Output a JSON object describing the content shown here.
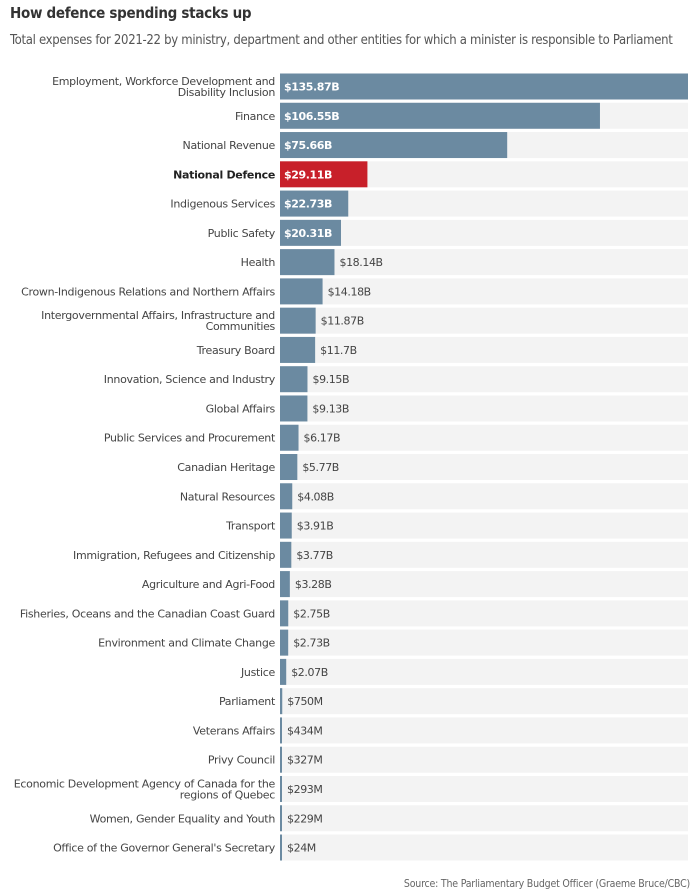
{
  "chart_data": {
    "type": "bar",
    "orientation": "horizontal",
    "title": "How defence spending stacks up",
    "subtitle": "Total expenses for 2021-22 by ministry, department and other entities for which a minister is responsible to Parliament",
    "source": "Source: The Parliamentary Budget Officer (Graeme Bruce/CBC)",
    "unit": "billions CAD",
    "colors": {
      "default": "#6b8aa1",
      "highlight": "#c8202a",
      "track": "#f3f3f3"
    },
    "highlight": "National Defence",
    "grid": false,
    "categories": [
      "Employment, Workforce Development and\nDisability Inclusion",
      "Finance",
      "National Revenue",
      "National Defence",
      "Indigenous Services",
      "Public Safety",
      "Health",
      "Crown-Indigenous Relations and Northern Affairs",
      "Intergovernmental Affairs, Infrastructure and\nCommunities",
      "Treasury Board",
      "Innovation, Science and Industry",
      "Global Affairs",
      "Public Services and Procurement",
      "Canadian Heritage",
      "Natural Resources",
      "Transport",
      "Immigration, Refugees and Citizenship",
      "Agriculture and Agri-Food",
      "Fisheries, Oceans and the Canadian Coast Guard",
      "Environment and Climate Change",
      "Justice",
      "Parliament",
      "Veterans Affairs",
      "Privy Council",
      "Economic Development Agency of Canada for the\nregions of Quebec",
      "Women, Gender Equality and Youth",
      "Office of the Governor General's Secretary"
    ],
    "values": [
      135.87,
      106.55,
      75.66,
      29.11,
      22.73,
      20.31,
      18.14,
      14.18,
      11.87,
      11.7,
      9.15,
      9.13,
      6.17,
      5.77,
      4.08,
      3.91,
      3.77,
      3.28,
      2.75,
      2.73,
      2.07,
      0.75,
      0.434,
      0.327,
      0.293,
      0.229,
      0.024
    ],
    "labels": [
      "$135.87B",
      "$106.55B",
      "$75.66B",
      "$29.11B",
      "$22.73B",
      "$20.31B",
      "$18.14B",
      "$14.18B",
      "$11.87B",
      "$11.7B",
      "$9.15B",
      "$9.13B",
      "$6.17B",
      "$5.77B",
      "$4.08B",
      "$3.91B",
      "$3.77B",
      "$3.28B",
      "$2.75B",
      "$2.73B",
      "$2.07B",
      "$750M",
      "$434M",
      "$327M",
      "$293M",
      "$229M",
      "$24M"
    ]
  }
}
